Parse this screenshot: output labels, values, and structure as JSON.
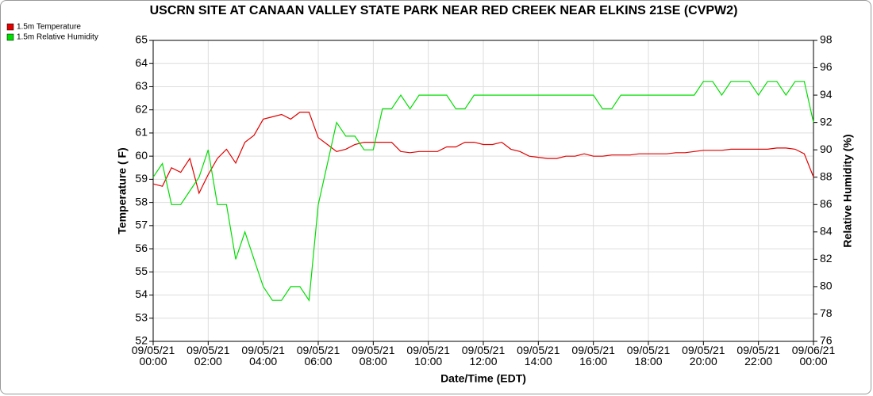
{
  "chart_data": {
    "type": "line",
    "title": "USCRN SITE AT CANAAN VALLEY STATE PARK NEAR RED CREEK NEAR ELKINS 21SE (CVPW2)",
    "x_label": "Date/Time (EDT)",
    "y_label": "Temperature ( F)",
    "y2_label": "Relative Humidity (%)",
    "x": [
      "09/05/21 00:00",
      "09/05/21 00:20",
      "09/05/21 00:40",
      "09/05/21 01:00",
      "09/05/21 01:20",
      "09/05/21 01:40",
      "09/05/21 02:00",
      "09/05/21 02:20",
      "09/05/21 02:40",
      "09/05/21 03:00",
      "09/05/21 03:20",
      "09/05/21 03:40",
      "09/05/21 04:00",
      "09/05/21 04:20",
      "09/05/21 04:40",
      "09/05/21 05:00",
      "09/05/21 05:20",
      "09/05/21 05:40",
      "09/05/21 06:00",
      "09/05/21 06:20",
      "09/05/21 06:40",
      "09/05/21 07:00",
      "09/05/21 07:20",
      "09/05/21 07:40",
      "09/05/21 08:00",
      "09/05/21 08:20",
      "09/05/21 08:40",
      "09/05/21 09:00",
      "09/05/21 09:20",
      "09/05/21 09:40",
      "09/05/21 10:00",
      "09/05/21 10:20",
      "09/05/21 10:40",
      "09/05/21 11:00",
      "09/05/21 11:20",
      "09/05/21 11:40",
      "09/05/21 12:00",
      "09/05/21 12:20",
      "09/05/21 12:40",
      "09/05/21 13:00",
      "09/05/21 13:20",
      "09/05/21 13:40",
      "09/05/21 14:00",
      "09/05/21 14:20",
      "09/05/21 14:40",
      "09/05/21 15:00",
      "09/05/21 15:20",
      "09/05/21 15:40",
      "09/05/21 16:00",
      "09/05/21 16:20",
      "09/05/21 16:40",
      "09/05/21 17:00",
      "09/05/21 17:20",
      "09/05/21 17:40",
      "09/05/21 18:00",
      "09/05/21 18:20",
      "09/05/21 18:40",
      "09/05/21 19:00",
      "09/05/21 19:20",
      "09/05/21 19:40",
      "09/05/21 20:00",
      "09/05/21 20:20",
      "09/05/21 20:40",
      "09/05/21 21:00",
      "09/05/21 21:20",
      "09/05/21 21:40",
      "09/05/21 22:00",
      "09/05/21 22:20",
      "09/05/21 22:40",
      "09/05/21 23:00",
      "09/05/21 23:20",
      "09/05/21 23:40",
      "09/06/21 00:00"
    ],
    "series": [
      {
        "name": "1.5m Temperature",
        "color": "#e00000",
        "values": [
          58.8,
          58.7,
          59.5,
          59.3,
          59.9,
          58.4,
          59.2,
          59.9,
          60.3,
          59.7,
          60.6,
          60.9,
          61.6,
          61.7,
          61.8,
          61.6,
          61.9,
          61.9,
          60.8,
          60.5,
          60.2,
          60.3,
          60.5,
          60.6,
          60.6,
          60.6,
          60.6,
          60.2,
          60.15,
          60.2,
          60.2,
          60.2,
          60.4,
          60.4,
          60.6,
          60.6,
          60.5,
          60.5,
          60.6,
          60.3,
          60.2,
          60.0,
          59.95,
          59.9,
          59.9,
          60.0,
          60.0,
          60.1,
          60.0,
          60.0,
          60.05,
          60.05,
          60.05,
          60.1,
          60.1,
          60.1,
          60.1,
          60.15,
          60.15,
          60.2,
          60.25,
          60.25,
          60.25,
          60.3,
          60.3,
          60.3,
          60.3,
          60.3,
          60.35,
          60.35,
          60.3,
          60.1,
          59.1
        ]
      },
      {
        "name": "1.5m Relative Humidity",
        "color": "#00dd00",
        "axis": "y2",
        "values": [
          88,
          89,
          86,
          86,
          87,
          88,
          90,
          86,
          86,
          82,
          84,
          82,
          80,
          79,
          79,
          80,
          80,
          79,
          86,
          89,
          92,
          91,
          91,
          90,
          90,
          93,
          93,
          94,
          93,
          94,
          94,
          94,
          94,
          93,
          93,
          94,
          94,
          94,
          94,
          94,
          94,
          94,
          94,
          94,
          94,
          94,
          94,
          94,
          94,
          93,
          93,
          94,
          94,
          94,
          94,
          94,
          94,
          94,
          94,
          94,
          95,
          95,
          94,
          95,
          95,
          95,
          94,
          95,
          95,
          94,
          95,
          95,
          92
        ]
      }
    ],
    "xlim": [
      "09/05/21 00:00",
      "09/06/21 00:00"
    ],
    "xticks": [
      {
        "value": "09/05/21 00:00",
        "label": "09/05/21\n00:00"
      },
      {
        "value": "09/05/21 02:00",
        "label": "09/05/21\n02:00"
      },
      {
        "value": "09/05/21 04:00",
        "label": "09/05/21\n04:00"
      },
      {
        "value": "09/05/21 06:00",
        "label": "09/05/21\n06:00"
      },
      {
        "value": "09/05/21 08:00",
        "label": "09/05/21\n08:00"
      },
      {
        "value": "09/05/21 10:00",
        "label": "09/05/21\n10:00"
      },
      {
        "value": "09/05/21 12:00",
        "label": "09/05/21\n12:00"
      },
      {
        "value": "09/05/21 14:00",
        "label": "09/05/21\n14:00"
      },
      {
        "value": "09/05/21 16:00",
        "label": "09/05/21\n16:00"
      },
      {
        "value": "09/05/21 18:00",
        "label": "09/05/21\n18:00"
      },
      {
        "value": "09/05/21 20:00",
        "label": "09/05/21\n20:00"
      },
      {
        "value": "09/05/21 22:00",
        "label": "09/05/21\n22:00"
      },
      {
        "value": "09/06/21 00:00",
        "label": "09/06/21\n00:00"
      }
    ],
    "ylim": [
      52,
      65
    ],
    "yticks": [
      52,
      53,
      54,
      55,
      56,
      57,
      58,
      59,
      60,
      61,
      62,
      63,
      64,
      65
    ],
    "y2lim": [
      76,
      98
    ],
    "y2ticks": [
      76,
      78,
      80,
      82,
      84,
      86,
      88,
      90,
      92,
      94,
      96,
      98
    ],
    "grid": true,
    "legend": "top-left"
  }
}
